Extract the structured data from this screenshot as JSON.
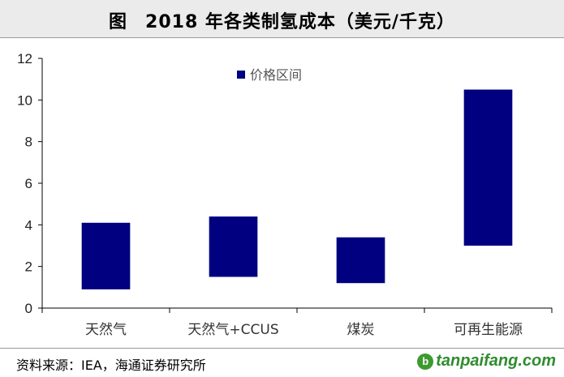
{
  "header": {
    "figure_label": "图",
    "title": "2018 年各类制氢成本（美元/千克）"
  },
  "chart_data": {
    "type": "bar",
    "subtype": "floating-range",
    "categories": [
      "天然气",
      "天然气+CCUS",
      "煤炭",
      "可再生能源"
    ],
    "series": [
      {
        "name": "价格区间",
        "low": [
          0.9,
          1.5,
          1.2,
          3.0
        ],
        "high": [
          4.1,
          4.4,
          3.4,
          10.5
        ]
      }
    ],
    "yticks": [
      "0",
      "2",
      "4",
      "6",
      "8",
      "10",
      "12"
    ],
    "ylim": [
      0,
      12
    ],
    "grid": false,
    "legend_position": "top-center",
    "bar_color": "#000080"
  },
  "footer": {
    "source": "资料来源：IEA，海通证券研究所",
    "brand_icon": "leaf-logo-icon",
    "brand_text": "tanpaifang.com"
  }
}
